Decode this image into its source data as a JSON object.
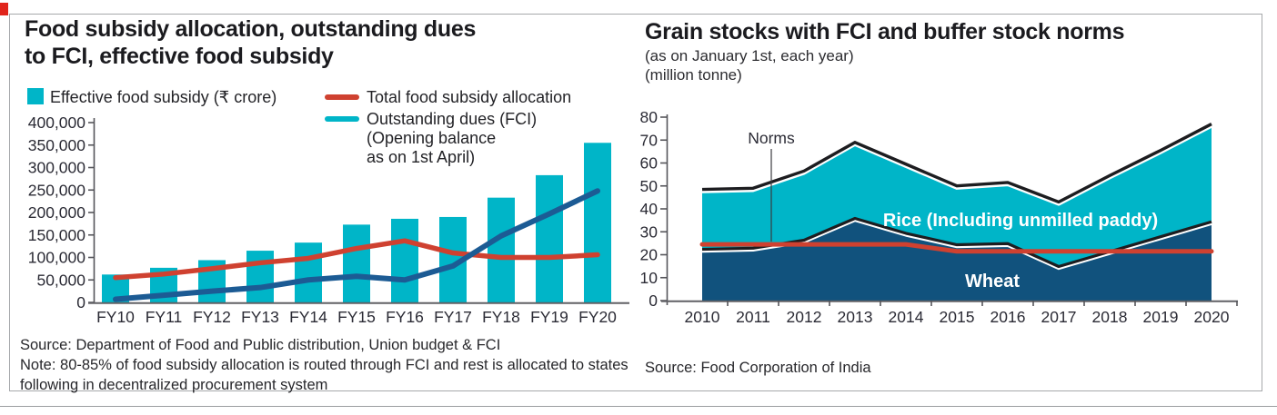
{
  "colors": {
    "teal": "#00b5c8",
    "blue_line": "#1c5b94",
    "wheat_fill": "#11527d",
    "red": "#cf4130",
    "outline_black": "#1d1d20",
    "axis": "#55555a",
    "baseline": "#606065",
    "tick_text": "#2b2b35",
    "white": "#ffffff"
  },
  "left_chart": {
    "title_lines": [
      "Food subsidy allocation, outstanding dues",
      "to FCI, effective food subsidy"
    ],
    "legend": {
      "bar_label": "Effective food subsidy (₹ crore)",
      "red_line_label": "Total food subsidy allocation",
      "blue_line_lines": [
        "Outstanding dues (FCI)",
        "(Opening balance",
        "as on 1st April)"
      ]
    },
    "source": "Source: Department of Food and Public distribution, Union budget & FCI",
    "note_lines": [
      "Note: 80-85% of food subsidy allocation is routed through FCI and rest is allocated to states",
      "following in decentralized procurement system"
    ]
  },
  "right_chart": {
    "title": "Grain stocks with FCI and buffer stock norms",
    "subtitle_lines": [
      "(as on January 1st, each year)",
      "(million tonne)"
    ],
    "source": "Source: Food Corporation of India",
    "labels": {
      "norms": "Norms",
      "rice": "Rice (Including unmilled paddy)",
      "wheat": "Wheat"
    }
  },
  "chart_data": [
    {
      "type": "bar",
      "title": "Food subsidy allocation, outstanding dues to FCI, effective food subsidy",
      "unit": "₹ crore",
      "categories": [
        "FY10",
        "FY11",
        "FY12",
        "FY13",
        "FY14",
        "FY15",
        "FY16",
        "FY17",
        "FY18",
        "FY19",
        "FY20"
      ],
      "series": [
        {
          "name": "Effective food subsidy (₹ crore)",
          "type": "bar",
          "values": [
            62000,
            77000,
            94000,
            115000,
            133000,
            173000,
            186000,
            190000,
            233000,
            283000,
            355000
          ]
        },
        {
          "name": "Total food subsidy allocation",
          "type": "line",
          "values": [
            55000,
            63000,
            75000,
            88000,
            98000,
            120000,
            137000,
            110000,
            100000,
            100000,
            106000
          ]
        },
        {
          "name": "Outstanding dues (FCI) (Opening balance as on 1st April)",
          "type": "line",
          "values": [
            7000,
            16000,
            25000,
            33000,
            50000,
            58000,
            50000,
            81000,
            148000,
            197000,
            248000
          ]
        }
      ],
      "ylim": [
        0,
        400000
      ],
      "ytick_step": 50000,
      "grid": false,
      "legend_position": "top"
    },
    {
      "type": "area",
      "title": "Grain stocks with FCI and buffer stock norms",
      "unit": "million tonne",
      "x": [
        2010,
        2011,
        2012,
        2013,
        2014,
        2015,
        2016,
        2017,
        2018,
        2019,
        2020
      ],
      "stacked": true,
      "series": [
        {
          "name": "Wheat",
          "type": "area",
          "values": [
            21,
            21.5,
            25,
            34.5,
            28,
            23,
            23.5,
            13.5,
            20,
            26.5,
            33
          ]
        },
        {
          "name": "Rice (Including unmilled paddy)",
          "type": "area",
          "values": [
            26,
            26,
            30,
            33,
            30,
            25.5,
            26.5,
            28,
            33,
            37.5,
            42.5
          ]
        },
        {
          "name": "Norms",
          "type": "line",
          "values": [
            24.5,
            24.5,
            24.5,
            24.5,
            24.5,
            21.5,
            21.5,
            21.5,
            21.5,
            21.5,
            21.5
          ]
        }
      ],
      "totals": [
        47,
        47.5,
        55,
        67.5,
        58,
        48.5,
        50,
        41.5,
        53,
        64,
        75.5
      ],
      "ylim": [
        0,
        80
      ],
      "ytick_step": 10,
      "grid": false,
      "annotations": [
        "Norms pointer line at x≈2011.5 down to norms line"
      ]
    }
  ]
}
